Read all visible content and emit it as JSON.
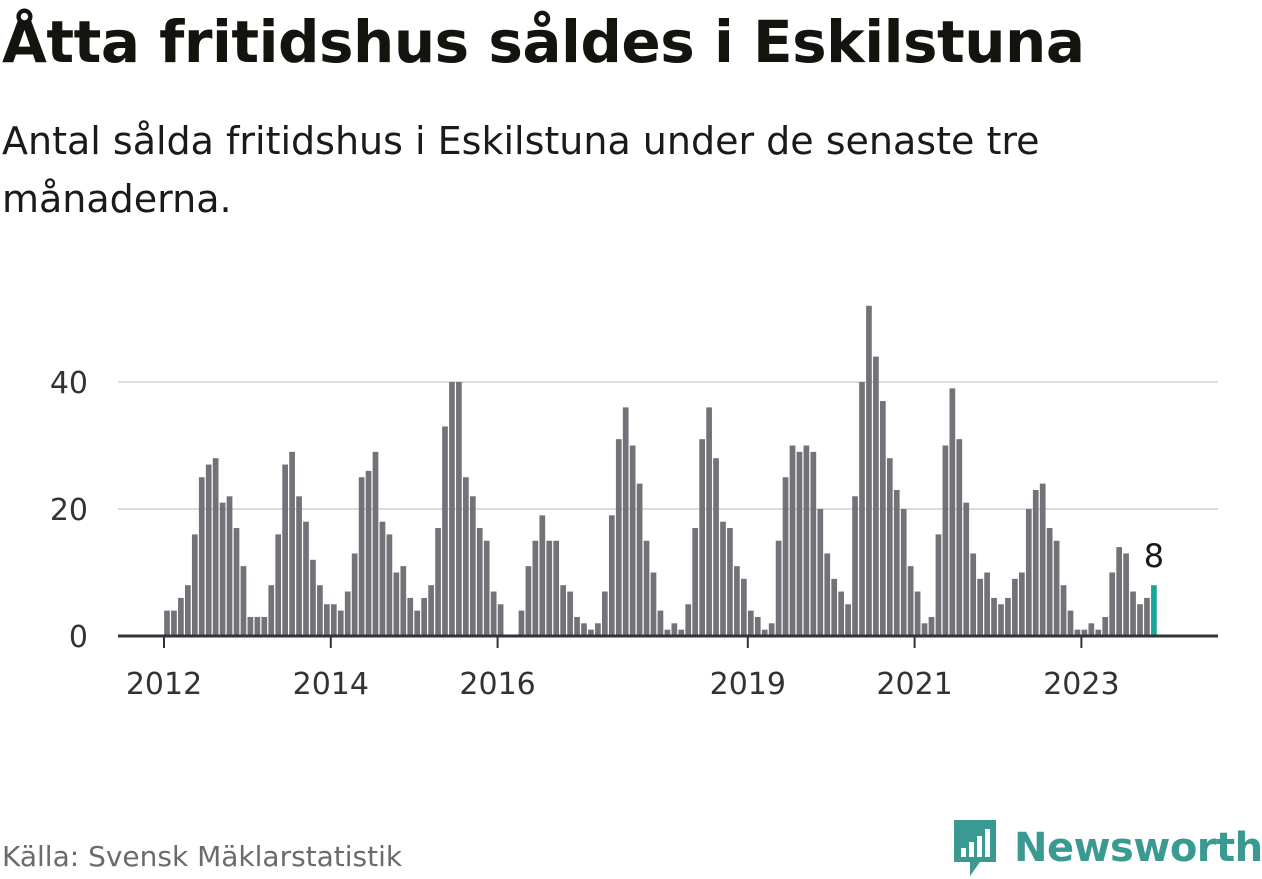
{
  "title": "Åtta fritidshus såldes i Eskilstuna",
  "subtitle": "Antal sålda fritidshus i Eskilstuna under de senaste tre månaderna.",
  "source": "Källa: Svensk Mäklarstatistik",
  "brand": "Newsworthy",
  "colors": {
    "bar": "#727278",
    "highlight": "#1aa59a",
    "grid": "#dcdcdc",
    "axis": "#333333",
    "brand": "#3a9a92"
  },
  "chart_data": {
    "type": "bar",
    "title": "Åtta fritidshus såldes i Eskilstuna",
    "subtitle": "Antal sålda fritidshus i Eskilstuna under de senaste tre månaderna.",
    "xlabel": "",
    "ylabel": "",
    "ylim": [
      0,
      55
    ],
    "yticks": [
      0,
      20,
      40
    ],
    "grid": true,
    "x_ticks": [
      {
        "label": "2012",
        "index": 0
      },
      {
        "label": "2014",
        "index": 24
      },
      {
        "label": "2016",
        "index": 48
      },
      {
        "label": "2019",
        "index": 84
      },
      {
        "label": "2021",
        "index": 108
      },
      {
        "label": "2023",
        "index": 132
      }
    ],
    "start_month": "2012-01",
    "values": [
      4,
      4,
      6,
      8,
      16,
      25,
      27,
      28,
      21,
      22,
      17,
      11,
      3,
      3,
      3,
      8,
      16,
      27,
      29,
      22,
      18,
      12,
      8,
      5,
      5,
      4,
      7,
      13,
      25,
      26,
      29,
      18,
      16,
      10,
      11,
      6,
      4,
      6,
      8,
      17,
      33,
      40,
      40,
      25,
      22,
      17,
      15,
      7,
      5,
      0,
      0,
      4,
      11,
      15,
      19,
      15,
      15,
      8,
      7,
      3,
      2,
      1,
      2,
      7,
      19,
      31,
      36,
      30,
      24,
      15,
      10,
      4,
      1,
      2,
      1,
      5,
      17,
      31,
      36,
      28,
      18,
      17,
      11,
      9,
      4,
      3,
      1,
      2,
      15,
      25,
      30,
      29,
      30,
      29,
      20,
      13,
      9,
      7,
      5,
      22,
      40,
      52,
      44,
      37,
      28,
      23,
      20,
      11,
      7,
      2,
      3,
      16,
      30,
      39,
      31,
      21,
      13,
      9,
      10,
      6,
      5,
      6,
      9,
      10,
      20,
      23,
      24,
      17,
      15,
      8,
      4,
      1,
      1,
      2,
      1,
      3,
      10,
      14,
      13,
      7,
      5,
      6,
      8
    ],
    "highlight_index": 142,
    "annotation": "8"
  }
}
